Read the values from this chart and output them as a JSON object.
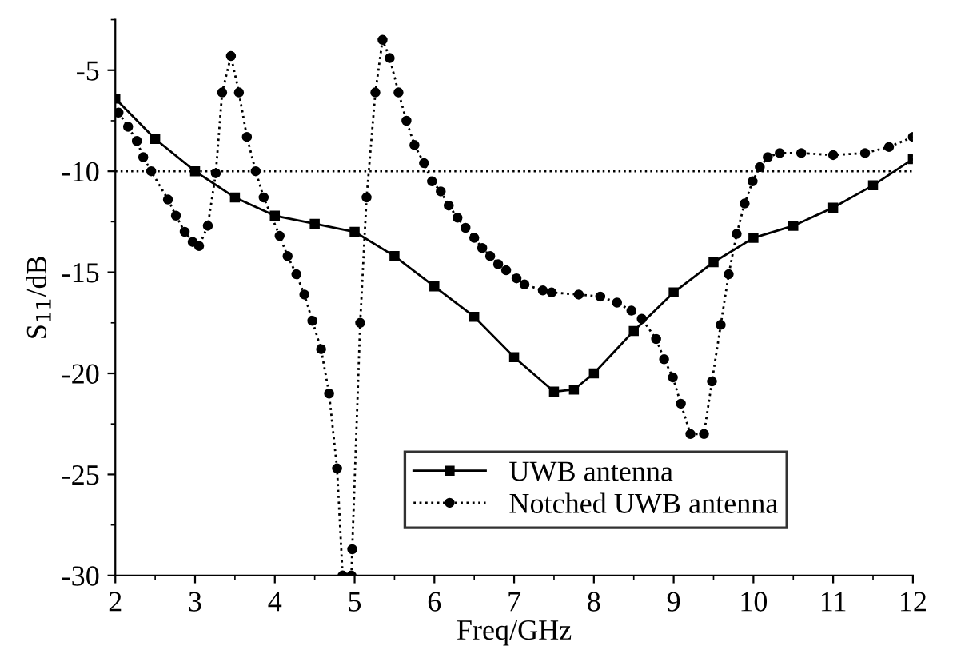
{
  "chart_data": {
    "type": "line",
    "xlabel": "Freq/GHz",
    "ylabel": "S$_{11}$/dB",
    "xlim": [
      2,
      12
    ],
    "xticks": [
      2,
      3,
      4,
      5,
      6,
      7,
      8,
      9,
      10,
      11,
      12
    ],
    "ylim": [
      -30,
      -2.5
    ],
    "yticks": [
      -30,
      -25,
      -20,
      -15,
      -10,
      -5
    ],
    "grid": false,
    "legend": "bottom right",
    "ref_lines": [
      {
        "axis": "y",
        "value": -10,
        "line_style": "dotted",
        "color": "#000000"
      }
    ],
    "series": [
      {
        "name": "UWB antenna",
        "color": "#000000",
        "marker": "square",
        "line_style": "solid",
        "x": [
          2,
          2.5,
          3,
          3.5,
          4,
          4.5,
          5,
          5.5,
          6,
          6.5,
          7,
          7.5,
          7.75,
          8,
          8.5,
          9,
          9.5,
          10,
          10.5,
          11,
          11.5,
          12
        ],
        "values": [
          -6.4,
          -8.4,
          -10.0,
          -11.3,
          -12.2,
          -12.6,
          -13.0,
          -14.2,
          -15.7,
          -17.2,
          -19.2,
          -20.9,
          -20.8,
          -20.0,
          -17.9,
          -16.0,
          -14.5,
          -13.3,
          -12.7,
          -11.8,
          -10.7,
          -9.4
        ]
      },
      {
        "name": "Notched UWB antenna",
        "color": "#000000",
        "marker": "circle",
        "line_style": "dotted",
        "x": [
          2.04,
          2.16,
          2.27,
          2.35,
          2.45,
          2.66,
          2.76,
          2.87,
          2.97,
          3.05,
          3.16,
          3.26,
          3.34,
          3.45,
          3.55,
          3.65,
          3.76,
          3.86,
          4.06,
          4.16,
          4.27,
          4.37,
          4.47,
          4.58,
          4.68,
          4.78,
          4.85,
          4.96,
          4.97,
          5.07,
          5.15,
          5.26,
          5.35,
          5.44,
          5.55,
          5.65,
          5.75,
          5.87,
          5.97,
          6.08,
          6.18,
          6.29,
          6.39,
          6.5,
          6.6,
          6.7,
          6.8,
          6.9,
          7.03,
          7.13,
          7.36,
          7.47,
          7.81,
          8.08,
          8.29,
          8.47,
          8.6,
          8.78,
          8.88,
          8.99,
          9.09,
          9.21,
          9.38,
          9.48,
          9.59,
          9.69,
          9.79,
          9.89,
          9.99,
          10.08,
          10.18,
          10.33,
          10.6,
          11.0,
          11.4,
          11.7,
          12.0
        ],
        "values": [
          -7.1,
          -7.8,
          -8.5,
          -9.3,
          -10.0,
          -11.4,
          -12.2,
          -13.0,
          -13.5,
          -13.7,
          -12.7,
          -10.1,
          -6.1,
          -4.3,
          -6.1,
          -8.3,
          -10.0,
          -11.3,
          -13.2,
          -14.2,
          -15.1,
          -16.1,
          -17.4,
          -18.8,
          -21.0,
          -24.7,
          -30,
          -30,
          -28.7,
          -17.5,
          -11.3,
          -6.1,
          -3.5,
          -4.4,
          -6.1,
          -7.5,
          -8.7,
          -9.6,
          -10.5,
          -11.0,
          -11.7,
          -12.3,
          -12.8,
          -13.3,
          -13.8,
          -14.2,
          -14.6,
          -14.9,
          -15.3,
          -15.6,
          -15.9,
          -16.0,
          -16.1,
          -16.2,
          -16.5,
          -16.9,
          -17.3,
          -18.3,
          -19.3,
          -20.2,
          -21.5,
          -23.0,
          -23.0,
          -20.4,
          -17.6,
          -15.1,
          -13.1,
          -11.6,
          -10.5,
          -9.8,
          -9.3,
          -9.1,
          -9.1,
          -9.2,
          -9.1,
          -8.8,
          -8.3
        ]
      }
    ]
  }
}
